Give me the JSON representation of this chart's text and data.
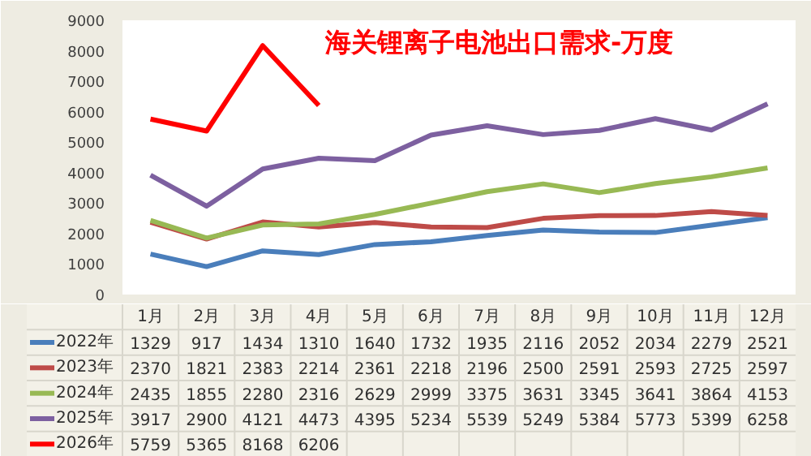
{
  "chart_data": {
    "type": "line",
    "title": "海关锂离子电池出口需求-万度",
    "categories": [
      "1月",
      "2月",
      "3月",
      "4月",
      "5月",
      "6月",
      "7月",
      "8月",
      "9月",
      "10月",
      "11月",
      "12月"
    ],
    "series": [
      {
        "name": "2022年",
        "color": "#4a7ebb",
        "values": [
          1329,
          917,
          1434,
          1310,
          1640,
          1732,
          1935,
          2116,
          2052,
          2034,
          2279,
          2521
        ]
      },
      {
        "name": "2023年",
        "color": "#be4b48",
        "values": [
          2370,
          1821,
          2383,
          2214,
          2361,
          2218,
          2196,
          2500,
          2591,
          2593,
          2725,
          2597
        ]
      },
      {
        "name": "2024年",
        "color": "#98b954",
        "values": [
          2435,
          1855,
          2280,
          2316,
          2629,
          2999,
          3375,
          3631,
          3345,
          3641,
          3864,
          4153
        ]
      },
      {
        "name": "2025年",
        "color": "#7d60a0",
        "values": [
          3917,
          2900,
          4121,
          4473,
          4395,
          5234,
          5539,
          5249,
          5384,
          5773,
          5399,
          6258
        ]
      },
      {
        "name": "2026年",
        "color": "#ff0000",
        "values": [
          5759,
          5365,
          8168,
          6206,
          null,
          null,
          null,
          null,
          null,
          null,
          null,
          null
        ]
      }
    ],
    "ylim": [
      0,
      9000
    ],
    "yticks": [
      0,
      1000,
      2000,
      3000,
      4000,
      5000,
      6000,
      7000,
      8000,
      9000
    ],
    "data_labels": true,
    "legend": "bottom"
  }
}
